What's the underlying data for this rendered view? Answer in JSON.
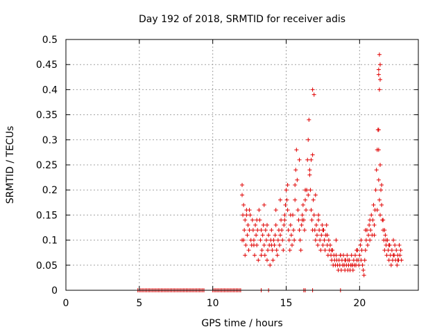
{
  "chart_data": {
    "type": "scatter",
    "title": "Day 192 of 2018, SRMTID for receiver adis",
    "xlabel": "GPS time / hours",
    "ylabel": "SRMTID / TECUs",
    "xlim": [
      0,
      24
    ],
    "ylim": [
      0,
      0.5
    ],
    "xticks": [
      0,
      5,
      10,
      15,
      20
    ],
    "xtick_labels": [
      "0",
      "5",
      "10",
      "15",
      "20"
    ],
    "yticks": [
      0,
      0.05,
      0.1,
      0.15,
      0.2,
      0.25,
      0.3,
      0.35,
      0.4,
      0.45,
      0.5
    ],
    "ytick_labels": [
      "0",
      "0.05",
      "0.1",
      "0.15",
      "0.2",
      "0.25",
      "0.3",
      "0.35",
      "0.4",
      "0.45",
      "0.5"
    ],
    "grid": true,
    "marker": "+",
    "colors": {
      "series": "#e00000",
      "grid": "#a0a0a0",
      "axis": "#000000"
    },
    "series": [
      {
        "name": "",
        "x": [
          4.9,
          5.0,
          5.1,
          5.2,
          5.3,
          5.4,
          5.5,
          5.6,
          5.7,
          5.8,
          5.9,
          6.0,
          6.1,
          6.2,
          6.3,
          6.4,
          6.5,
          6.6,
          6.7,
          6.8,
          6.9,
          7.0,
          7.1,
          7.2,
          7.3,
          7.4,
          7.5,
          7.6,
          7.7,
          7.8,
          7.9,
          8.0,
          8.1,
          8.2,
          8.3,
          8.4,
          8.5,
          8.6,
          8.7,
          8.8,
          8.9,
          9.0,
          9.1,
          9.2,
          9.3,
          9.4,
          10.0,
          10.1,
          10.2,
          10.3,
          10.4,
          10.5,
          10.6,
          10.7,
          10.8,
          10.9,
          11.0,
          11.1,
          11.2,
          11.3,
          11.4,
          11.5,
          11.6,
          11.7,
          11.8,
          11.9,
          12.0,
          12.05,
          12.1,
          12.15,
          12.2,
          12.25,
          12.3,
          12.35,
          12.4,
          12.45,
          12.5,
          12.55,
          12.6,
          12.65,
          12.7,
          12.75,
          12.8,
          12.85,
          12.9,
          12.95,
          13.0,
          13.05,
          13.1,
          13.15,
          13.2,
          13.25,
          13.3,
          13.35,
          13.4,
          13.45,
          13.5,
          13.55,
          13.6,
          13.65,
          13.7,
          13.75,
          13.8,
          13.85,
          13.9,
          13.95,
          14.0,
          14.05,
          14.1,
          14.15,
          14.2,
          14.25,
          14.3,
          14.35,
          14.4,
          14.45,
          14.5,
          14.55,
          14.6,
          14.65,
          14.7,
          14.75,
          14.8,
          14.85,
          14.9,
          14.95,
          15.0,
          15.05,
          15.1,
          15.15,
          15.2,
          15.25,
          15.3,
          15.35,
          15.4,
          15.45,
          15.5,
          15.55,
          15.6,
          15.65,
          15.7,
          15.75,
          15.8,
          15.85,
          15.9,
          15.95,
          16.0,
          16.05,
          16.1,
          16.15,
          16.2,
          16.25,
          16.3,
          16.35,
          16.4,
          16.45,
          16.5,
          16.55,
          16.6,
          16.65,
          16.7,
          16.75,
          16.8,
          16.85,
          16.9,
          16.95,
          17.0,
          17.05,
          17.1,
          17.15,
          17.2,
          17.25,
          17.3,
          17.35,
          17.4,
          17.45,
          17.5,
          17.55,
          17.6,
          17.65,
          17.7,
          17.75,
          17.8,
          17.85,
          17.9,
          17.95,
          18.0,
          18.05,
          18.1,
          18.15,
          18.2,
          18.25,
          18.3,
          18.35,
          18.4,
          18.45,
          18.5,
          18.55,
          18.6,
          18.65,
          18.7,
          18.75,
          18.8,
          18.85,
          18.9,
          18.95,
          19.0,
          19.05,
          19.1,
          19.15,
          19.2,
          19.25,
          19.3,
          19.35,
          19.4,
          19.45,
          19.5,
          19.55,
          19.6,
          19.65,
          19.7,
          19.75,
          19.8,
          19.85,
          19.9,
          19.95,
          20.0,
          20.05,
          20.1,
          20.15,
          20.2,
          20.25,
          20.3,
          20.35,
          20.4,
          20.45,
          20.5,
          20.55,
          20.6,
          20.65,
          20.7,
          20.75,
          20.8,
          20.85,
          20.9,
          20.95,
          21.0,
          21.05,
          21.1,
          21.15,
          21.2,
          21.25,
          21.3,
          21.35,
          21.4,
          21.45,
          21.5,
          21.55,
          21.6,
          21.65,
          21.7,
          21.75,
          21.8,
          21.85,
          21.9,
          21.95,
          22.0,
          22.05,
          22.1,
          22.15,
          22.2,
          22.25,
          22.3,
          22.35,
          22.4,
          22.45,
          22.5,
          22.55,
          22.6,
          22.65,
          22.7,
          22.75,
          22.8,
          22.85,
          12.0,
          12.0,
          12.1,
          12.2,
          12.3,
          12.5,
          12.8,
          13.0,
          13.3,
          13.5,
          13.7,
          14.0,
          14.3,
          14.6,
          14.9,
          15.1,
          15.3,
          15.6,
          15.9,
          16.1,
          16.3,
          16.5,
          16.6,
          16.7,
          16.8,
          16.8,
          16.9,
          17.0,
          17.2,
          17.5,
          17.8,
          18.1,
          18.4,
          18.7,
          19.0,
          19.2,
          19.5,
          19.8,
          20.1,
          20.4,
          20.7,
          21.0,
          21.2,
          21.3,
          21.3,
          21.35,
          21.4,
          21.4,
          21.35,
          21.3,
          21.3,
          21.4,
          21.5,
          21.6,
          21.7,
          21.8,
          22.0,
          22.3,
          22.6,
          13.3,
          13.8,
          16.2,
          16.3,
          16.8,
          18.7
        ],
        "y": [
          0,
          0,
          0,
          0,
          0,
          0,
          0,
          0,
          0,
          0,
          0,
          0,
          0,
          0,
          0,
          0,
          0,
          0,
          0,
          0,
          0,
          0,
          0,
          0,
          0,
          0,
          0,
          0,
          0,
          0,
          0,
          0,
          0,
          0,
          0,
          0,
          0,
          0,
          0,
          0,
          0,
          0,
          0,
          0,
          0,
          0,
          0,
          0,
          0,
          0,
          0,
          0,
          0,
          0,
          0,
          0,
          0,
          0,
          0,
          0,
          0,
          0,
          0,
          0,
          0,
          0,
          0.21,
          0.15,
          0.1,
          0.12,
          0.14,
          0.09,
          0.16,
          0.11,
          0.13,
          0.08,
          0.12,
          0.15,
          0.1,
          0.09,
          0.14,
          0.12,
          0.1,
          0.07,
          0.13,
          0.11,
          0.09,
          0.12,
          0.06,
          0.16,
          0.14,
          0.1,
          0.12,
          0.08,
          0.11,
          0.13,
          0.09,
          0.07,
          0.12,
          0.1,
          0.06,
          0.08,
          0.11,
          0.09,
          0.05,
          0.1,
          0.12,
          0.08,
          0.06,
          0.1,
          0.09,
          0.11,
          0.13,
          0.08,
          0.07,
          0.1,
          0.12,
          0.09,
          0.11,
          0.14,
          0.12,
          0.1,
          0.08,
          0.13,
          0.15,
          0.17,
          0.2,
          0.18,
          0.16,
          0.12,
          0.1,
          0.08,
          0.13,
          0.11,
          0.09,
          0.15,
          0.12,
          0.1,
          0.18,
          0.24,
          0.28,
          0.22,
          0.16,
          0.14,
          0.12,
          0.1,
          0.08,
          0.13,
          0.15,
          0.17,
          0.14,
          0.12,
          0.18,
          0.16,
          0.2,
          0.26,
          0.3,
          0.34,
          0.24,
          0.2,
          0.16,
          0.14,
          0.12,
          0.18,
          0.15,
          0.12,
          0.1,
          0.13,
          0.11,
          0.09,
          0.14,
          0.12,
          0.1,
          0.08,
          0.11,
          0.13,
          0.09,
          0.12,
          0.1,
          0.08,
          0.11,
          0.13,
          0.09,
          0.07,
          0.1,
          0.08,
          0.09,
          0.07,
          0.06,
          0.08,
          0.05,
          0.07,
          0.06,
          0.05,
          0.07,
          0.06,
          0.05,
          0.04,
          0.06,
          0.05,
          0.07,
          0.04,
          0.06,
          0.05,
          0.07,
          0.05,
          0.04,
          0.06,
          0.05,
          0.07,
          0.04,
          0.05,
          0.06,
          0.04,
          0.05,
          0.07,
          0.05,
          0.04,
          0.06,
          0.05,
          0.07,
          0.05,
          0.06,
          0.08,
          0.06,
          0.05,
          0.07,
          0.09,
          0.06,
          0.08,
          0.05,
          0.04,
          0.03,
          0.06,
          0.08,
          0.1,
          0.12,
          0.09,
          0.11,
          0.13,
          0.1,
          0.12,
          0.15,
          0.11,
          0.14,
          0.17,
          0.13,
          0.16,
          0.2,
          0.24,
          0.28,
          0.32,
          0.22,
          0.18,
          0.15,
          0.2,
          0.17,
          0.14,
          0.12,
          0.1,
          0.08,
          0.11,
          0.09,
          0.07,
          0.1,
          0.08,
          0.06,
          0.09,
          0.07,
          0.05,
          0.08,
          0.06,
          0.1,
          0.07,
          0.09,
          0.06,
          0.08,
          0.05,
          0.07,
          0.06,
          0.09,
          0.07,
          0.08,
          0.06,
          0.19,
          0.1,
          0.17,
          0.07,
          0.15,
          0.16,
          0.09,
          0.14,
          0.07,
          0.17,
          0.13,
          0.09,
          0.16,
          0.18,
          0.14,
          0.21,
          0.15,
          0.21,
          0.26,
          0.14,
          0.2,
          0.19,
          0.23,
          0.26,
          0.27,
          0.4,
          0.39,
          0.19,
          0.15,
          0.12,
          0.11,
          0.08,
          0.1,
          0.07,
          0.06,
          0.06,
          0.05,
          0.08,
          0.1,
          0.12,
          0.14,
          0.11,
          0.16,
          0.28,
          0.43,
          0.47,
          0.45,
          0.42,
          0.4,
          0.44,
          0.32,
          0.25,
          0.21,
          0.14,
          0.12,
          0.1,
          0.09,
          0.07,
          0.06,
          0,
          0,
          0,
          0,
          0,
          0
        ]
      }
    ]
  }
}
